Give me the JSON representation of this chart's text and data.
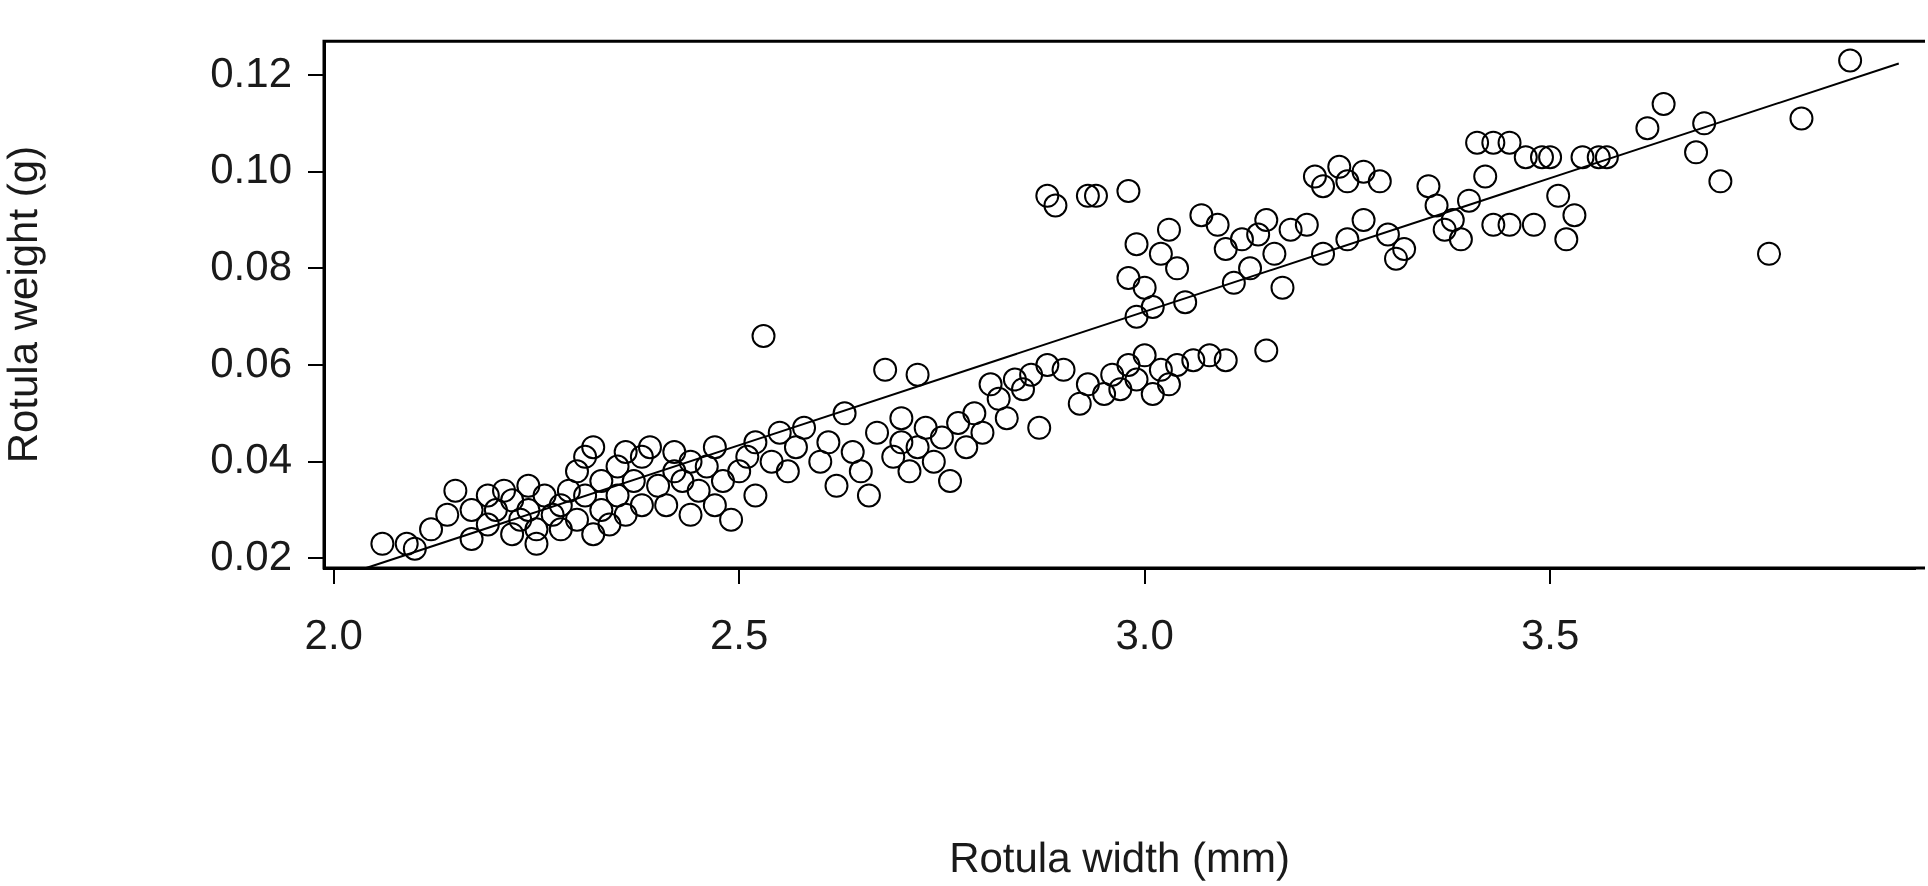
{
  "chart_data": {
    "type": "scatter",
    "xlabel": "Rotula width (mm)",
    "ylabel": "Rotula weight (g)",
    "xlim": [
      1.988,
      3.95
    ],
    "ylim": [
      0.018,
      0.127
    ],
    "xticks": [
      {
        "value": 2,
        "label": "2.0"
      },
      2.5,
      {
        "value": 3,
        "label": "3.0"
      },
      3.5
    ],
    "yticks": [
      0.02,
      0.04,
      0.06,
      0.08,
      {
        "value": 0.1,
        "label": "0.10"
      },
      0.12
    ],
    "marker": "circle",
    "series": [
      {
        "color": "#000000",
        "x": [
          2.06,
          2.09,
          2.1,
          2.12,
          2.14,
          2.15,
          2.17,
          2.17,
          2.19,
          2.19,
          2.2,
          2.21,
          2.22,
          2.22,
          2.23,
          2.24,
          2.24,
          2.25,
          2.25,
          2.26,
          2.27,
          2.28,
          2.28,
          2.29,
          2.3,
          2.3,
          2.31,
          2.31,
          2.32,
          2.32,
          2.33,
          2.33,
          2.34,
          2.35,
          2.35,
          2.36,
          2.36,
          2.37,
          2.38,
          2.38,
          2.39,
          2.4,
          2.41,
          2.42,
          2.42,
          2.43,
          2.44,
          2.44,
          2.45,
          2.46,
          2.47,
          2.47,
          2.48,
          2.49,
          2.5,
          2.51,
          2.52,
          2.52,
          2.53,
          2.54,
          2.55,
          2.56,
          2.57,
          2.58,
          2.6,
          2.61,
          2.62,
          2.63,
          2.64,
          2.65,
          2.66,
          2.67,
          2.68,
          2.69,
          2.7,
          2.7,
          2.71,
          2.72,
          2.72,
          2.73,
          2.74,
          2.75,
          2.76,
          2.77,
          2.78,
          2.79,
          2.8,
          2.81,
          2.82,
          2.83,
          2.84,
          2.85,
          2.86,
          2.87,
          2.88,
          2.88,
          2.89,
          2.9,
          2.93,
          2.94,
          2.98,
          2.92,
          2.93,
          2.95,
          2.96,
          2.97,
          2.98,
          2.99,
          3.0,
          3.01,
          3.02,
          3.03,
          3.04,
          3.06,
          3.08,
          3.1,
          3.15,
          2.98,
          2.99,
          3.0,
          3.01,
          3.02,
          3.03,
          3.04,
          3.05,
          2.99,
          3.07,
          3.09,
          3.1,
          3.12,
          3.13,
          3.14,
          3.15,
          3.16,
          3.17,
          3.18,
          3.11,
          3.21,
          3.22,
          3.24,
          3.25,
          3.27,
          3.29,
          3.2,
          3.22,
          3.25,
          3.27,
          3.3,
          3.32,
          3.31,
          3.35,
          3.36,
          3.37,
          3.38,
          3.39,
          3.4,
          3.41,
          3.43,
          3.45,
          3.47,
          3.49,
          3.5,
          3.54,
          3.56,
          3.57,
          3.42,
          3.43,
          3.45,
          3.48,
          3.51,
          3.53,
          3.52,
          3.64,
          3.62,
          3.69,
          3.68,
          3.71,
          3.77,
          3.81,
          3.87
        ],
        "values": [
          0.023,
          0.023,
          0.022,
          0.026,
          0.029,
          0.034,
          0.03,
          0.024,
          0.033,
          0.027,
          0.03,
          0.034,
          0.032,
          0.025,
          0.028,
          0.035,
          0.03,
          0.026,
          0.023,
          0.033,
          0.029,
          0.031,
          0.026,
          0.034,
          0.038,
          0.028,
          0.041,
          0.033,
          0.025,
          0.043,
          0.036,
          0.03,
          0.027,
          0.039,
          0.033,
          0.042,
          0.029,
          0.036,
          0.041,
          0.031,
          0.043,
          0.035,
          0.031,
          0.038,
          0.042,
          0.036,
          0.029,
          0.04,
          0.034,
          0.039,
          0.043,
          0.031,
          0.036,
          0.028,
          0.038,
          0.041,
          0.044,
          0.033,
          0.066,
          0.04,
          0.046,
          0.038,
          0.043,
          0.047,
          0.04,
          0.044,
          0.035,
          0.05,
          0.042,
          0.038,
          0.033,
          0.046,
          0.059,
          0.041,
          0.049,
          0.044,
          0.038,
          0.058,
          0.043,
          0.047,
          0.04,
          0.045,
          0.036,
          0.048,
          0.043,
          0.05,
          0.046,
          0.056,
          0.053,
          0.049,
          0.057,
          0.055,
          0.058,
          0.047,
          0.06,
          0.095,
          0.093,
          0.059,
          0.095,
          0.095,
          0.096,
          0.052,
          0.056,
          0.054,
          0.058,
          0.055,
          0.06,
          0.057,
          0.062,
          0.054,
          0.059,
          0.056,
          0.06,
          0.061,
          0.062,
          0.061,
          0.063,
          0.078,
          0.085,
          0.076,
          0.072,
          0.083,
          0.088,
          0.08,
          0.073,
          0.07,
          0.091,
          0.089,
          0.084,
          0.086,
          0.08,
          0.087,
          0.09,
          0.083,
          0.076,
          0.088,
          0.077,
          0.099,
          0.097,
          0.101,
          0.098,
          0.1,
          0.098,
          0.089,
          0.083,
          0.086,
          0.09,
          0.087,
          0.084,
          0.082,
          0.097,
          0.093,
          0.088,
          0.09,
          0.086,
          0.094,
          0.106,
          0.106,
          0.106,
          0.103,
          0.103,
          0.103,
          0.103,
          0.103,
          0.103,
          0.099,
          0.089,
          0.089,
          0.089,
          0.095,
          0.091,
          0.086,
          0.114,
          0.109,
          0.11,
          0.104,
          0.098,
          0.083,
          0.111,
          0.123
        ]
      },
      {
        "type": "line",
        "color": "#000000",
        "marker": "none",
        "x": [
          2.04,
          3.93
        ],
        "values": [
          0.018,
          0.1224
        ]
      }
    ]
  }
}
